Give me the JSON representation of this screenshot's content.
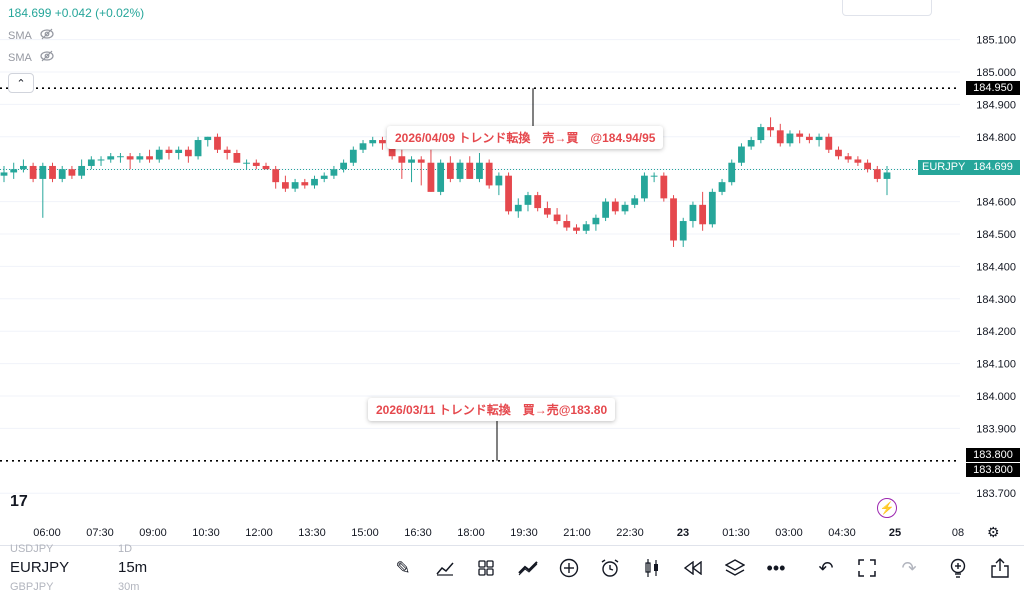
{
  "legend": {
    "price": "184.699",
    "change": "+0.042 (+0.02%)",
    "sma1": "SMA",
    "sma2": "SMA",
    "eye_icon": "eye-off-icon"
  },
  "chart_data": {
    "type": "candlestick",
    "symbol": "EURJPY",
    "interval": "15m",
    "last_price": 184.699,
    "yticks": [
      "185.100",
      "185.000",
      "184.900",
      "184.800",
      "184.700",
      "184.600",
      "184.500",
      "184.400",
      "184.300",
      "184.200",
      "184.100",
      "184.000",
      "183.900",
      "183.700"
    ],
    "xticks": [
      "06:00",
      "07:30",
      "09:00",
      "10:30",
      "12:00",
      "13:30",
      "15:00",
      "16:30",
      "18:00",
      "19:30",
      "21:00",
      "22:30",
      "23",
      "01:30",
      "03:00",
      "04:30",
      "25",
      "08"
    ],
    "hlines": [
      184.95,
      183.8
    ],
    "candles": [
      [
        184.68,
        184.71,
        184.66,
        184.69
      ],
      [
        184.69,
        184.72,
        184.67,
        184.7
      ],
      [
        184.7,
        184.73,
        184.69,
        184.71
      ],
      [
        184.71,
        184.72,
        184.66,
        184.67
      ],
      [
        184.67,
        184.72,
        184.55,
        184.71
      ],
      [
        184.71,
        184.72,
        184.66,
        184.67
      ],
      [
        184.67,
        184.71,
        184.66,
        184.7
      ],
      [
        184.7,
        184.71,
        184.67,
        184.68
      ],
      [
        184.68,
        184.73,
        184.67,
        184.71
      ],
      [
        184.71,
        184.74,
        184.7,
        184.73
      ],
      [
        184.73,
        184.74,
        184.71,
        184.73
      ],
      [
        184.73,
        184.75,
        184.72,
        184.74
      ],
      [
        184.74,
        184.75,
        184.72,
        184.74
      ],
      [
        184.74,
        184.75,
        184.7,
        184.73
      ],
      [
        184.73,
        184.75,
        184.72,
        184.74
      ],
      [
        184.74,
        184.76,
        184.72,
        184.73
      ],
      [
        184.73,
        184.77,
        184.72,
        184.76
      ],
      [
        184.76,
        184.77,
        184.73,
        184.75
      ],
      [
        184.75,
        184.77,
        184.73,
        184.76
      ],
      [
        184.76,
        184.77,
        184.72,
        184.74
      ],
      [
        184.74,
        184.8,
        184.73,
        184.79
      ],
      [
        184.79,
        184.8,
        184.77,
        184.8
      ],
      [
        184.8,
        184.81,
        184.75,
        184.76
      ],
      [
        184.76,
        184.77,
        184.73,
        184.75
      ],
      [
        184.75,
        184.76,
        184.72,
        184.72
      ],
      [
        184.72,
        184.73,
        184.7,
        184.72
      ],
      [
        184.72,
        184.73,
        184.7,
        184.71
      ],
      [
        184.71,
        184.72,
        184.7,
        184.7
      ],
      [
        184.7,
        184.71,
        184.64,
        184.66
      ],
      [
        184.66,
        184.68,
        184.63,
        184.64
      ],
      [
        184.64,
        184.67,
        184.63,
        184.66
      ],
      [
        184.66,
        184.67,
        184.64,
        184.65
      ],
      [
        184.65,
        184.68,
        184.64,
        184.67
      ],
      [
        184.67,
        184.69,
        184.66,
        184.68
      ],
      [
        184.68,
        184.71,
        184.67,
        184.7
      ],
      [
        184.7,
        184.73,
        184.69,
        184.72
      ],
      [
        184.72,
        184.77,
        184.71,
        184.76
      ],
      [
        184.76,
        184.79,
        184.75,
        184.78
      ],
      [
        184.78,
        184.8,
        184.77,
        184.79
      ],
      [
        184.79,
        184.8,
        184.76,
        184.78
      ],
      [
        184.78,
        184.8,
        184.73,
        184.74
      ],
      [
        184.74,
        184.76,
        184.67,
        184.72
      ],
      [
        184.72,
        184.74,
        184.66,
        184.73
      ],
      [
        184.73,
        184.74,
        184.65,
        184.72
      ],
      [
        184.72,
        184.76,
        184.63,
        184.63
      ],
      [
        184.63,
        184.73,
        184.62,
        184.72
      ],
      [
        184.72,
        184.74,
        184.66,
        184.67
      ],
      [
        184.67,
        184.73,
        184.66,
        184.72
      ],
      [
        184.72,
        184.74,
        184.67,
        184.67
      ],
      [
        184.67,
        184.75,
        184.66,
        184.72
      ],
      [
        184.72,
        184.73,
        184.64,
        184.65
      ],
      [
        184.65,
        184.69,
        184.62,
        184.68
      ],
      [
        184.68,
        184.69,
        184.56,
        184.57
      ],
      [
        184.57,
        184.61,
        184.55,
        184.59
      ],
      [
        184.59,
        184.63,
        184.57,
        184.62
      ],
      [
        184.62,
        184.63,
        184.57,
        184.58
      ],
      [
        184.58,
        184.6,
        184.55,
        184.56
      ],
      [
        184.56,
        184.58,
        184.53,
        184.54
      ],
      [
        184.54,
        184.56,
        184.51,
        184.52
      ],
      [
        184.52,
        184.53,
        184.5,
        184.51
      ],
      [
        184.51,
        184.54,
        184.5,
        184.53
      ],
      [
        184.53,
        184.56,
        184.51,
        184.55
      ],
      [
        184.55,
        184.61,
        184.54,
        184.6
      ],
      [
        184.6,
        184.61,
        184.56,
        184.57
      ],
      [
        184.57,
        184.6,
        184.56,
        184.59
      ],
      [
        184.59,
        184.62,
        184.58,
        184.61
      ],
      [
        184.61,
        184.69,
        184.6,
        184.68
      ],
      [
        184.68,
        184.69,
        184.66,
        184.68
      ],
      [
        184.68,
        184.69,
        184.6,
        184.61
      ],
      [
        184.61,
        184.62,
        184.46,
        184.48
      ],
      [
        184.48,
        184.55,
        184.46,
        184.54
      ],
      [
        184.54,
        184.6,
        184.52,
        184.59
      ],
      [
        184.59,
        184.63,
        184.51,
        184.53
      ],
      [
        184.53,
        184.64,
        184.52,
        184.63
      ],
      [
        184.63,
        184.67,
        184.62,
        184.66
      ],
      [
        184.66,
        184.73,
        184.65,
        184.72
      ],
      [
        184.72,
        184.78,
        184.71,
        184.77
      ],
      [
        184.77,
        184.8,
        184.76,
        184.79
      ],
      [
        184.79,
        184.84,
        184.78,
        184.83
      ],
      [
        184.83,
        184.86,
        184.8,
        184.82
      ],
      [
        184.82,
        184.84,
        184.77,
        184.78
      ],
      [
        184.78,
        184.82,
        184.77,
        184.81
      ],
      [
        184.81,
        184.82,
        184.78,
        184.8
      ],
      [
        184.8,
        184.81,
        184.78,
        184.79
      ],
      [
        184.79,
        184.81,
        184.77,
        184.8
      ],
      [
        184.8,
        184.81,
        184.75,
        184.76
      ],
      [
        184.76,
        184.77,
        184.73,
        184.74
      ],
      [
        184.74,
        184.75,
        184.72,
        184.73
      ],
      [
        184.73,
        184.74,
        184.71,
        184.72
      ],
      [
        184.72,
        184.73,
        184.69,
        184.7
      ],
      [
        184.7,
        184.71,
        184.66,
        184.67
      ],
      [
        184.67,
        184.71,
        184.62,
        184.69
      ]
    ]
  },
  "price_axis": {
    "hline_top_label": "184.950",
    "hline_bottom_label_1": "183.800",
    "hline_bottom_label_2": "183.800",
    "symbol_tag": "EURJPY",
    "symbol_price": "184.699"
  },
  "annotations": {
    "top": "2026/04/09 トレンド転換　売→買　@184.94/95",
    "bottom": "2026/03/11 トレンド転換　買→売@183.80"
  },
  "bottom_bar": {
    "prev_symbol": "USDJPY",
    "prev_tf": "1D",
    "symbol": "EURJPY",
    "timeframe": "15m",
    "next_symbol": "GBPJPY",
    "next_tf": "30m"
  },
  "colors": {
    "up": "#26a69a",
    "down": "#e5484d",
    "accent": "#9c27b0"
  }
}
